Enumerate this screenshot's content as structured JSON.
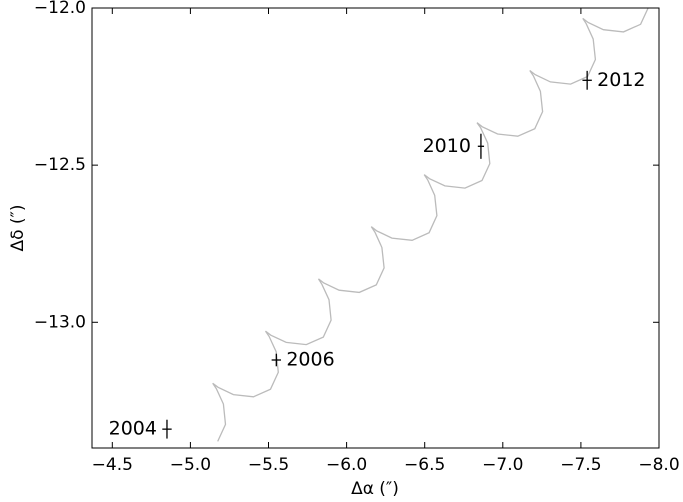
{
  "chart_data": {
    "type": "scatter",
    "xlabel": "Δα (″)",
    "ylabel": "Δδ (″)",
    "xlim": [
      -4.37,
      -8.0
    ],
    "ylim": [
      -13.4,
      -12.0
    ],
    "xticks": [
      {
        "value": -4.5,
        "label": "−4.5"
      },
      {
        "value": -5.0,
        "label": "−5.0"
      },
      {
        "value": -5.5,
        "label": "−5.5"
      },
      {
        "value": -6.0,
        "label": "−6.0"
      },
      {
        "value": -6.5,
        "label": "−6.5"
      },
      {
        "value": -7.0,
        "label": "−7.0"
      },
      {
        "value": -7.5,
        "label": "−7.5"
      },
      {
        "value": -8.0,
        "label": "−8.0"
      }
    ],
    "yticks": [
      {
        "value": -12.0,
        "label": "−12.0"
      },
      {
        "value": -12.5,
        "label": "−12.5"
      },
      {
        "value": -13.0,
        "label": "−13.0"
      }
    ],
    "labels": [
      "2004",
      "2006",
      "2010",
      "2012"
    ],
    "x": [
      -4.85,
      -5.55,
      -6.86,
      -7.54
    ],
    "values": [
      -13.34,
      -13.12,
      -12.44,
      -12.23
    ],
    "xerr": [
      0.03,
      0.03,
      0.02,
      0.03
    ],
    "yerr": [
      0.03,
      0.02,
      0.04,
      0.03
    ],
    "color": "#000000",
    "curve_color": "#bbbbbb",
    "curve_x": [
      -5.175,
      -5.225,
      -5.211,
      -5.166,
      -5.143,
      -5.177,
      -5.275,
      -5.404,
      -5.513,
      -5.563,
      -5.549,
      -5.504,
      -5.481,
      -5.515,
      -5.613,
      -5.742,
      -5.851,
      -5.901,
      -5.887,
      -5.842,
      -5.82,
      -5.854,
      -5.952,
      -6.081,
      -6.19,
      -6.24,
      -6.226,
      -6.181,
      -6.158,
      -6.192,
      -6.29,
      -6.419,
      -6.528,
      -6.578,
      -6.564,
      -6.519,
      -6.497,
      -6.531,
      -6.629,
      -6.758,
      -6.867,
      -6.917,
      -6.903,
      -6.858,
      -6.835,
      -6.869,
      -6.967,
      -7.096,
      -7.205,
      -7.255,
      -7.241,
      -7.196,
      -7.173,
      -7.207,
      -7.305,
      -7.434,
      -7.543,
      -7.593,
      -7.579,
      -7.534,
      -7.512,
      -7.546,
      -7.644,
      -7.773,
      -7.882,
      -7.932
    ],
    "curve_y": [
      -13.379,
      -13.325,
      -13.26,
      -13.211,
      -13.194,
      -13.207,
      -13.23,
      -13.237,
      -13.213,
      -13.159,
      -13.094,
      -13.045,
      -13.028,
      -13.041,
      -13.064,
      -13.071,
      -13.047,
      -12.993,
      -12.928,
      -12.879,
      -12.862,
      -12.875,
      -12.898,
      -12.905,
      -12.881,
      -12.827,
      -12.762,
      -12.713,
      -12.696,
      -12.709,
      -12.732,
      -12.739,
      -12.715,
      -12.661,
      -12.596,
      -12.547,
      -12.53,
      -12.543,
      -12.566,
      -12.573,
      -12.549,
      -12.495,
      -12.43,
      -12.381,
      -12.365,
      -12.378,
      -12.401,
      -12.408,
      -12.384,
      -12.33,
      -12.265,
      -12.216,
      -12.199,
      -12.212,
      -12.235,
      -12.242,
      -12.218,
      -12.164,
      -12.099,
      -12.05,
      -12.033,
      -12.046,
      -12.069,
      -12.076,
      -12.052,
      -11.998
    ]
  }
}
